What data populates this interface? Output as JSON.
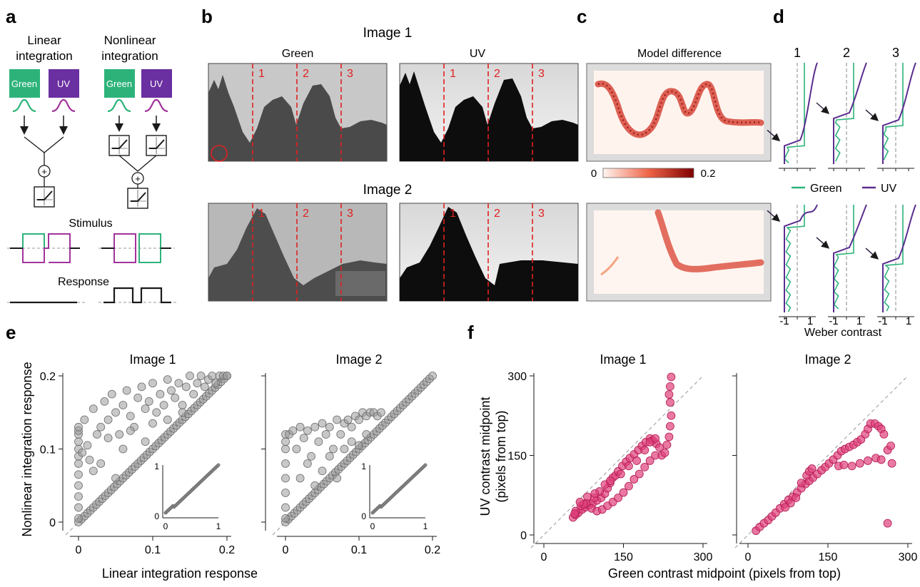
{
  "panels": {
    "a": "a",
    "b": "b",
    "c": "c",
    "d": "d",
    "e": "e",
    "f": "f"
  },
  "panel_a": {
    "linear_title": [
      "Linear",
      "integration"
    ],
    "nonlinear_title": [
      "Nonlinear",
      "integration"
    ],
    "green_label": "Green",
    "uv_label": "UV",
    "stimulus_label": "Stimulus",
    "response_label": "Response",
    "colors": {
      "green": "#2db37a",
      "uv": "#6a2fa0",
      "magenta": "#a2339a"
    }
  },
  "panel_b": {
    "image1_title": "Image 1",
    "image2_title": "Image 2",
    "green_title": "Green",
    "uv_title": "UV",
    "line_labels": [
      "1",
      "2",
      "3"
    ]
  },
  "panel_c": {
    "title": "Model difference",
    "colorbar_min": "0",
    "colorbar_max": "0.2"
  },
  "panel_d": {
    "column_labels": [
      "1",
      "2",
      "3"
    ],
    "legend": [
      {
        "name": "Green",
        "color": "#2db37a"
      },
      {
        "name": "UV",
        "color": "#5b2d8f"
      }
    ],
    "tick_labels": [
      "-1",
      "1"
    ],
    "xlabel": "Weber contrast"
  },
  "chart_data": [
    {
      "type": "scatter",
      "panel": "e",
      "title": "Image 1",
      "xlabel": "Linear integration response",
      "ylabel": "Nonlinear integration response",
      "xlim": [
        0,
        0.2
      ],
      "ylim": [
        0,
        0.2
      ],
      "xticks": [
        "0",
        "0.1",
        "0.2"
      ],
      "yticks": [
        "0",
        "0.1",
        "0.2"
      ],
      "diagonal": true,
      "points": [
        [
          0,
          0.005
        ],
        [
          0,
          0.02
        ],
        [
          0,
          0.035
        ],
        [
          0,
          0.05
        ],
        [
          0,
          0.065
        ],
        [
          0,
          0.08
        ],
        [
          0,
          0.09
        ],
        [
          0,
          0.1
        ],
        [
          0,
          0.11
        ],
        [
          0,
          0.12
        ],
        [
          0,
          0.125
        ],
        [
          0,
          0.13
        ],
        [
          0.005,
          0.095
        ],
        [
          0.008,
          0.14
        ],
        [
          0.012,
          0.105
        ],
        [
          0.02,
          0.155
        ],
        [
          0.025,
          0.12
        ],
        [
          0.03,
          0.13
        ],
        [
          0.035,
          0.165
        ],
        [
          0.04,
          0.14
        ],
        [
          0.045,
          0.175
        ],
        [
          0.05,
          0.15
        ],
        [
          0.055,
          0.12
        ],
        [
          0.06,
          0.16
        ],
        [
          0.065,
          0.18
        ],
        [
          0.07,
          0.145
        ],
        [
          0.075,
          0.13
        ],
        [
          0.08,
          0.17
        ],
        [
          0.085,
          0.185
        ],
        [
          0.09,
          0.155
        ],
        [
          0.095,
          0.165
        ],
        [
          0.1,
          0.19
        ],
        [
          0.105,
          0.15
        ],
        [
          0.11,
          0.175
        ],
        [
          0.115,
          0.16
        ],
        [
          0.12,
          0.195
        ],
        [
          0.125,
          0.18
        ],
        [
          0.13,
          0.17
        ],
        [
          0.135,
          0.19
        ],
        [
          0.14,
          0.16
        ],
        [
          0.145,
          0.185
        ],
        [
          0.15,
          0.2
        ],
        [
          0.155,
          0.175
        ],
        [
          0.16,
          0.19
        ],
        [
          0.165,
          0.2
        ],
        [
          0.17,
          0.185
        ],
        [
          0.175,
          0.195
        ],
        [
          0.18,
          0.2
        ],
        [
          0.185,
          0.19
        ],
        [
          0.19,
          0.2
        ],
        [
          0.195,
          0.2
        ],
        [
          0.2,
          0.2
        ],
        [
          0.03,
          0.08
        ],
        [
          0.06,
          0.1
        ],
        [
          0.09,
          0.11
        ],
        [
          0.05,
          0.06
        ],
        [
          0.02,
          0.07
        ],
        [
          0.015,
          0.085
        ],
        [
          0.04,
          0.115
        ],
        [
          0.07,
          0.125
        ],
        [
          0.1,
          0.135
        ],
        [
          0.12,
          0.14
        ],
        [
          0.14,
          0.15
        ]
      ],
      "diagonal_points": [
        0,
        0.02,
        0.04,
        0.06,
        0.08,
        0.1,
        0.12,
        0.14,
        0.16,
        0.18,
        0.2
      ],
      "inset": {
        "xlim": [
          0,
          1
        ],
        "ylim": [
          0,
          1
        ],
        "xticks": [
          "0",
          "1"
        ],
        "yticks": [
          "0",
          "1"
        ]
      }
    },
    {
      "type": "scatter",
      "panel": "e",
      "title": "Image 2",
      "xlim": [
        0,
        0.2
      ],
      "ylim": [
        0,
        0.2
      ],
      "xticks": [
        "0",
        "0.1",
        "0.2"
      ],
      "diagonal": true,
      "points": [
        [
          0,
          0.005
        ],
        [
          0,
          0.02
        ],
        [
          0,
          0.04
        ],
        [
          0,
          0.06
        ],
        [
          0,
          0.08
        ],
        [
          0,
          0.1
        ],
        [
          0,
          0.11
        ],
        [
          0,
          0.12
        ],
        [
          0.005,
          0.12
        ],
        [
          0.01,
          0.125
        ],
        [
          0.015,
          0.1
        ],
        [
          0.02,
          0.13
        ],
        [
          0.025,
          0.115
        ],
        [
          0.03,
          0.125
        ],
        [
          0.035,
          0.09
        ],
        [
          0.04,
          0.13
        ],
        [
          0.045,
          0.11
        ],
        [
          0.05,
          0.135
        ],
        [
          0.055,
          0.12
        ],
        [
          0.06,
          0.13
        ],
        [
          0.065,
          0.1
        ],
        [
          0.07,
          0.14
        ],
        [
          0.075,
          0.12
        ],
        [
          0.08,
          0.135
        ],
        [
          0.085,
          0.14
        ],
        [
          0.09,
          0.13
        ],
        [
          0.095,
          0.145
        ],
        [
          0.1,
          0.14
        ],
        [
          0.105,
          0.15
        ],
        [
          0.11,
          0.145
        ],
        [
          0.115,
          0.15
        ],
        [
          0.12,
          0.15
        ],
        [
          0.125,
          0.145
        ],
        [
          0.13,
          0.15
        ],
        [
          0.02,
          0.06
        ],
        [
          0.03,
          0.08
        ],
        [
          0.04,
          0.05
        ],
        [
          0.05,
          0.07
        ],
        [
          0.06,
          0.09
        ],
        [
          0.07,
          0.06
        ],
        [
          0.08,
          0.1
        ],
        [
          0.09,
          0.11
        ],
        [
          0.1,
          0.105
        ],
        [
          0.11,
          0.12
        ]
      ],
      "diagonal_points": [
        0,
        0.02,
        0.04,
        0.06,
        0.08,
        0.1,
        0.12,
        0.14,
        0.16,
        0.18,
        0.2
      ],
      "inset": {
        "xlim": [
          0,
          1
        ],
        "ylim": [
          0,
          1
        ],
        "xticks": [
          "0",
          "1"
        ],
        "yticks": [
          "0",
          "1"
        ]
      }
    },
    {
      "type": "scatter",
      "panel": "f",
      "title": "Image 1",
      "xlabel": "Green contrast midpoint (pixels from top)",
      "ylabel": "UV contrast midpoint (pixels from top)",
      "xlim": [
        0,
        300
      ],
      "ylim": [
        0,
        300
      ],
      "xticks": [
        "0",
        "150",
        "300"
      ],
      "yticks": [
        "0",
        "150",
        "300"
      ],
      "diagonal": true,
      "points": [
        [
          55,
          33
        ],
        [
          60,
          38
        ],
        [
          65,
          42
        ],
        [
          72,
          48
        ],
        [
          78,
          52
        ],
        [
          85,
          56
        ],
        [
          92,
          60
        ],
        [
          100,
          65
        ],
        [
          108,
          70
        ],
        [
          115,
          78
        ],
        [
          120,
          88
        ],
        [
          125,
          98
        ],
        [
          130,
          108
        ],
        [
          135,
          112
        ],
        [
          140,
          120
        ],
        [
          148,
          130
        ],
        [
          155,
          138
        ],
        [
          162,
          145
        ],
        [
          170,
          152
        ],
        [
          178,
          160
        ],
        [
          185,
          168
        ],
        [
          192,
          175
        ],
        [
          200,
          182
        ],
        [
          205,
          178
        ],
        [
          212,
          172
        ],
        [
          218,
          165
        ],
        [
          222,
          150
        ],
        [
          228,
          155
        ],
        [
          232,
          170
        ],
        [
          236,
          185
        ],
        [
          238,
          205
        ],
        [
          240,
          225
        ],
        [
          238,
          250
        ],
        [
          236,
          265
        ],
        [
          238,
          280
        ],
        [
          240,
          298
        ],
        [
          60,
          45
        ],
        [
          70,
          55
        ],
        [
          80,
          60
        ],
        [
          90,
          50
        ],
        [
          100,
          45
        ],
        [
          110,
          48
        ],
        [
          120,
          55
        ],
        [
          130,
          62
        ],
        [
          140,
          70
        ],
        [
          150,
          80
        ],
        [
          160,
          92
        ],
        [
          170,
          105
        ],
        [
          180,
          115
        ],
        [
          190,
          128
        ],
        [
          200,
          140
        ],
        [
          210,
          150
        ],
        [
          58,
          40
        ],
        [
          75,
          58
        ],
        [
          95,
          70
        ],
        [
          105,
          82
        ],
        [
          115,
          95
        ],
        [
          125,
          102
        ],
        [
          145,
          115
        ],
        [
          160,
          130
        ],
        [
          175,
          140
        ],
        [
          190,
          160
        ],
        [
          200,
          175
        ],
        [
          210,
          182
        ],
        [
          68,
          62
        ],
        [
          82,
          72
        ],
        [
          96,
          78
        ]
      ]
    },
    {
      "type": "scatter",
      "panel": "f",
      "title": "Image 2",
      "xlim": [
        0,
        300
      ],
      "ylim": [
        0,
        300
      ],
      "xticks": [
        "0",
        "150",
        "300"
      ],
      "diagonal": true,
      "points": [
        [
          15,
          8
        ],
        [
          22,
          15
        ],
        [
          30,
          22
        ],
        [
          38,
          28
        ],
        [
          45,
          35
        ],
        [
          52,
          42
        ],
        [
          60,
          50
        ],
        [
          68,
          58
        ],
        [
          76,
          66
        ],
        [
          84,
          72
        ],
        [
          92,
          80
        ],
        [
          100,
          88
        ],
        [
          108,
          96
        ],
        [
          115,
          102
        ],
        [
          122,
          108
        ],
        [
          130,
          115
        ],
        [
          138,
          122
        ],
        [
          145,
          128
        ],
        [
          152,
          135
        ],
        [
          160,
          142
        ],
        [
          168,
          150
        ],
        [
          175,
          158
        ],
        [
          182,
          162
        ],
        [
          190,
          166
        ],
        [
          198,
          170
        ],
        [
          205,
          175
        ],
        [
          212,
          180
        ],
        [
          220,
          190
        ],
        [
          225,
          200
        ],
        [
          230,
          210
        ],
        [
          238,
          210
        ],
        [
          245,
          205
        ],
        [
          250,
          200
        ],
        [
          255,
          190
        ],
        [
          262,
          160
        ],
        [
          268,
          168
        ],
        [
          270,
          135
        ],
        [
          262,
          22
        ],
        [
          170,
          130
        ],
        [
          180,
          132
        ],
        [
          195,
          130
        ],
        [
          210,
          135
        ],
        [
          225,
          140
        ],
        [
          240,
          145
        ],
        [
          250,
          142
        ],
        [
          100,
          98
        ],
        [
          110,
          112
        ],
        [
          115,
          120
        ],
        [
          120,
          125
        ],
        [
          90,
          70
        ],
        [
          80,
          60
        ],
        [
          70,
          52
        ]
      ]
    }
  ]
}
